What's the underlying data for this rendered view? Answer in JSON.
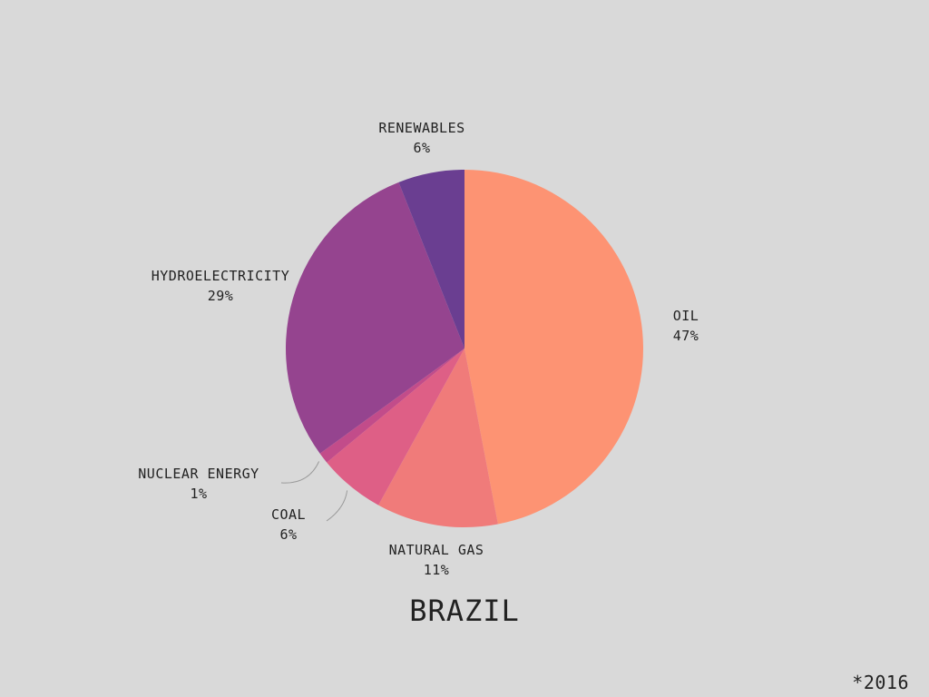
{
  "chart_data": {
    "type": "pie",
    "title": "BRAZIL",
    "footnote": "*2016",
    "slices": [
      {
        "name": "OIL",
        "value": 47,
        "label": "47%",
        "color": "#fd9373"
      },
      {
        "name": "NATURAL GAS",
        "value": 11,
        "label": "11%",
        "color": "#f07b7a"
      },
      {
        "name": "COAL",
        "value": 6,
        "label": "6%",
        "color": "#de5f86"
      },
      {
        "name": "NUCLEAR ENERGY",
        "value": 1,
        "label": "1%",
        "color": "#c24c8a"
      },
      {
        "name": "HYDROELECTRICITY",
        "value": 29,
        "label": "29%",
        "color": "#95448f"
      },
      {
        "name": "RENEWABLES",
        "value": 6,
        "label": "6%",
        "color": "#6a3e91"
      }
    ]
  }
}
